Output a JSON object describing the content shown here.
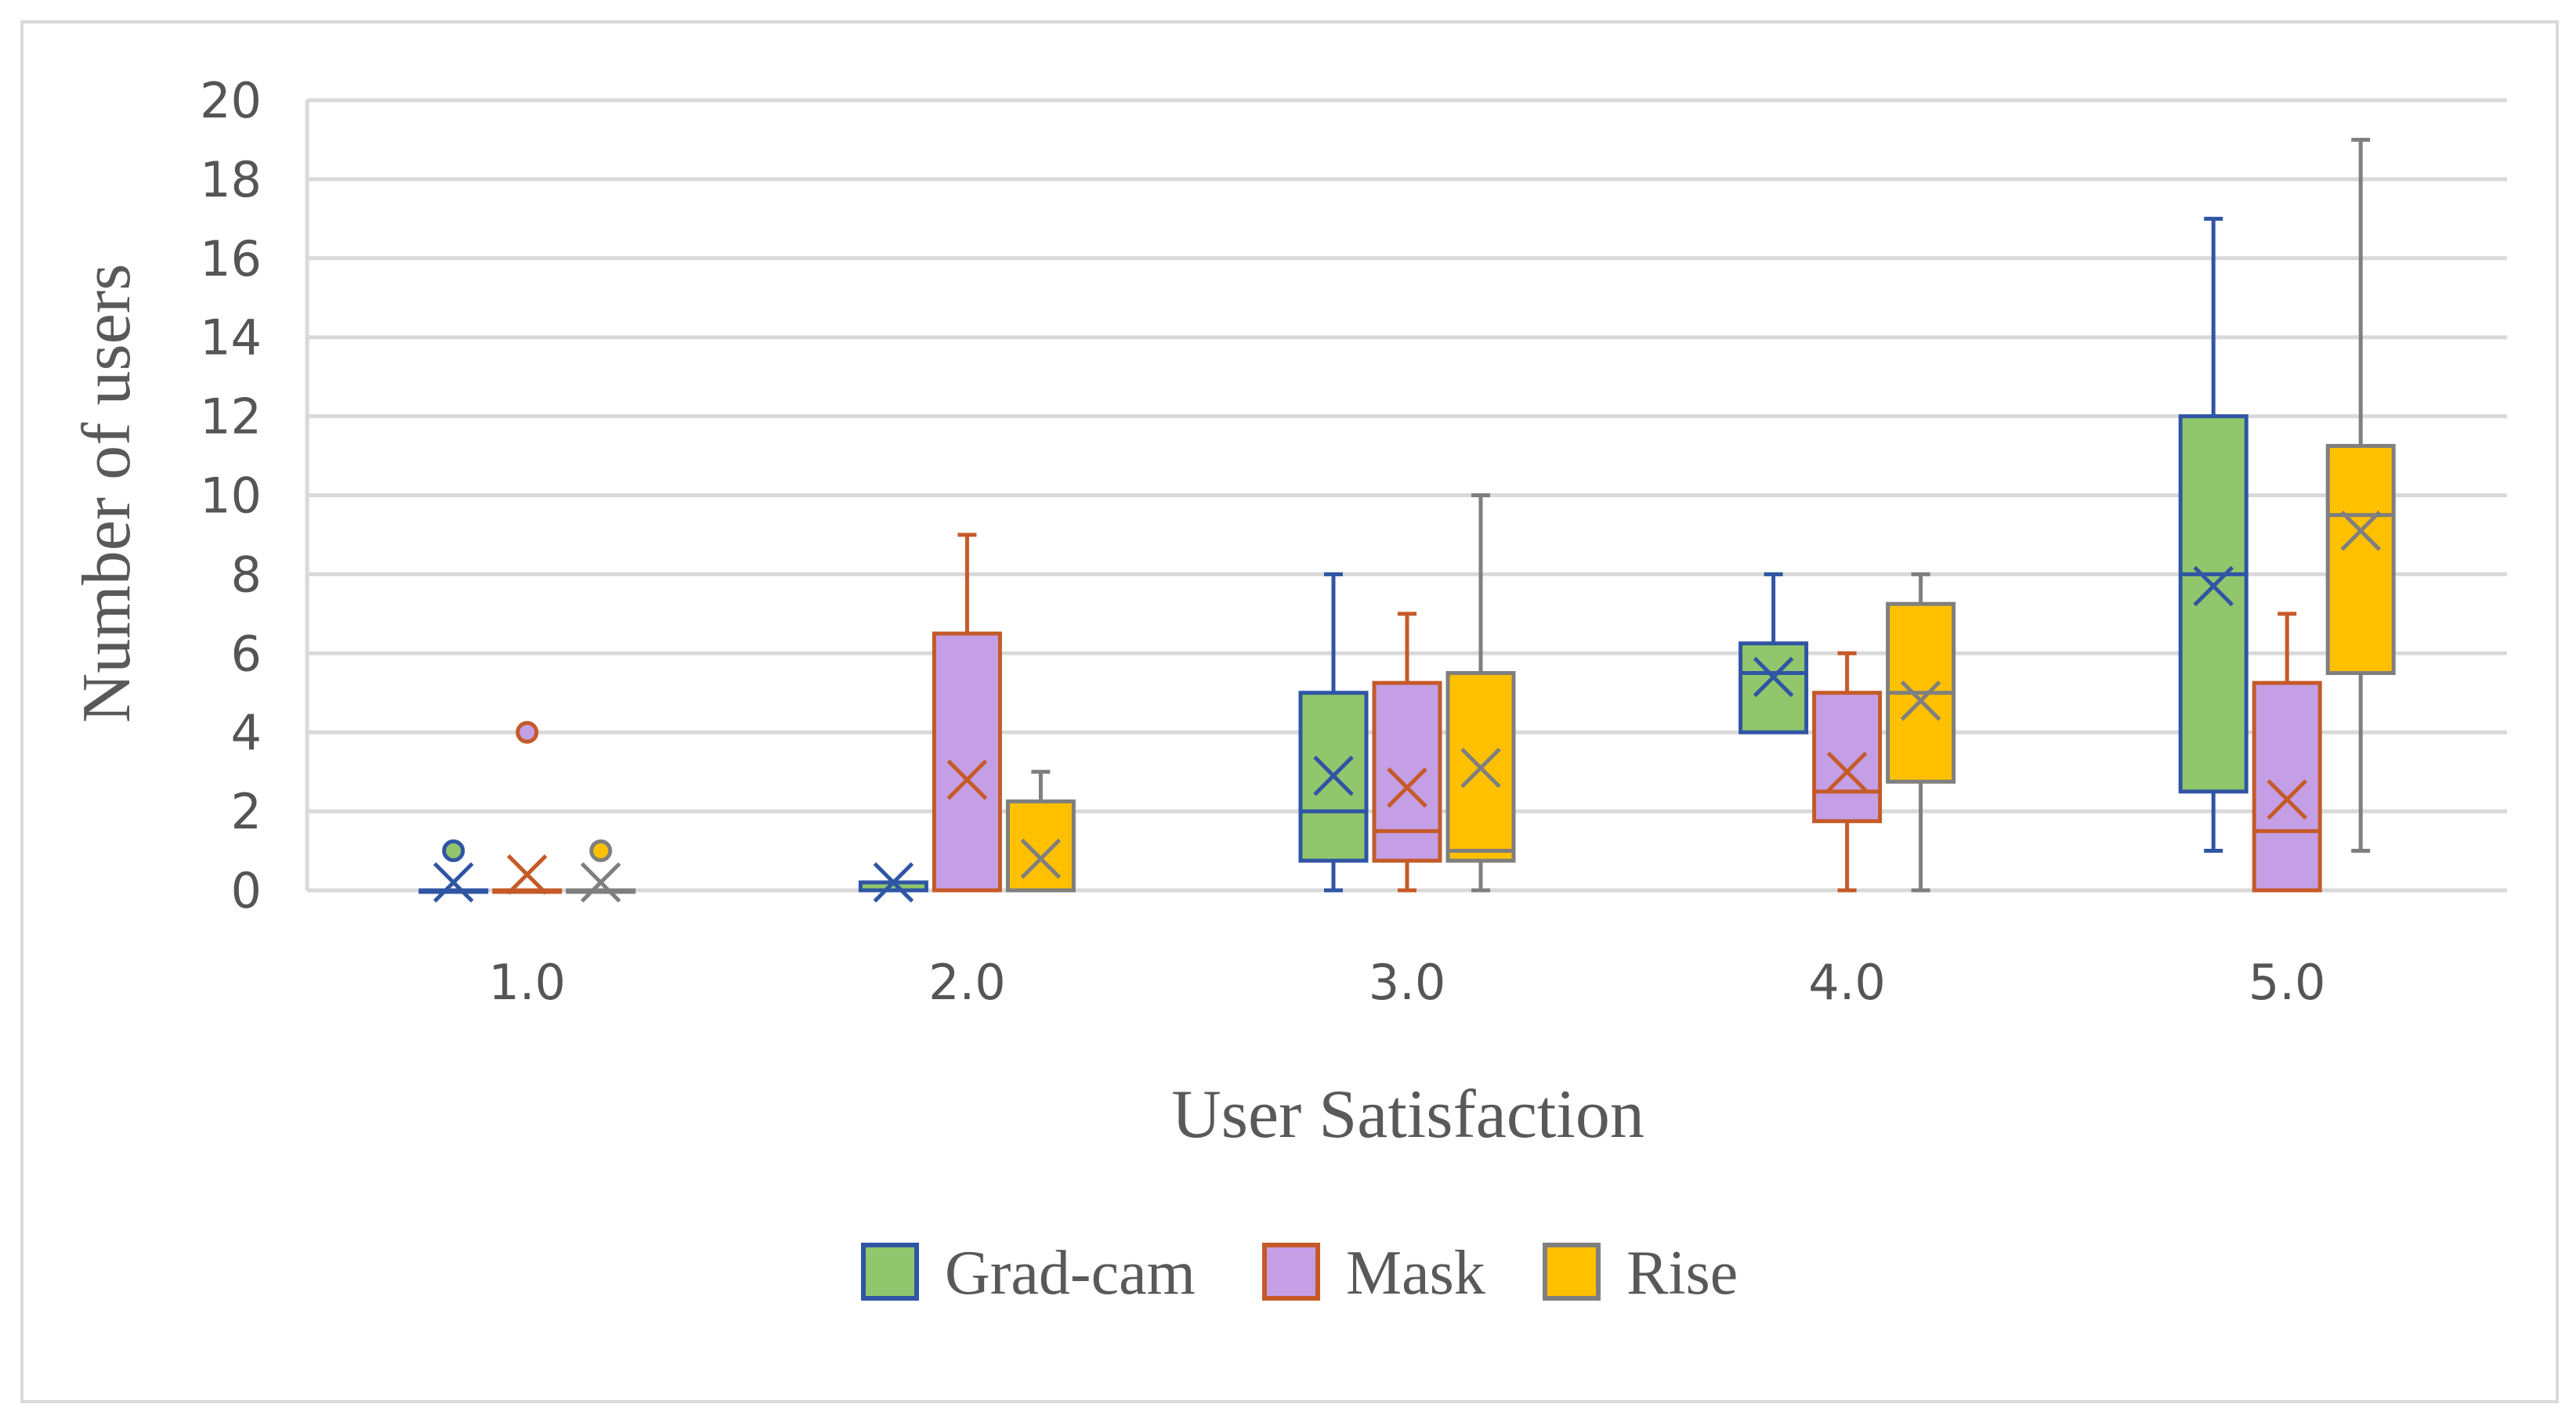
{
  "chart_data": {
    "type": "box",
    "xlabel": "User Satisfaction",
    "ylabel": "Number of users",
    "ylim": [
      0,
      20
    ],
    "yticks": [
      0,
      2,
      4,
      6,
      8,
      10,
      12,
      14,
      16,
      18,
      20
    ],
    "categories": [
      "1.0",
      "2.0",
      "3.0",
      "4.0",
      "5.0"
    ],
    "grid": true,
    "legend_position": "bottom",
    "series": [
      {
        "name": "Grad-cam",
        "fill": "#92C66C",
        "stroke": "#2F55A4",
        "boxes": [
          {
            "min": 0,
            "q1": 0,
            "median": 0,
            "q3": 0,
            "max": 0,
            "mean": 0.2,
            "outliers": [
              1
            ]
          },
          {
            "min": 0,
            "q1": 0,
            "median": 0,
            "q3": 0.2,
            "max": 0.2,
            "mean": 0.2,
            "outliers": []
          },
          {
            "min": 0,
            "q1": 0.75,
            "median": 2,
            "q3": 5,
            "max": 8,
            "mean": 2.9,
            "outliers": []
          },
          {
            "min": 4,
            "q1": 4,
            "median": 5.5,
            "q3": 6.25,
            "max": 8,
            "mean": 5.4,
            "outliers": []
          },
          {
            "min": 1,
            "q1": 2.5,
            "median": 8,
            "q3": 12,
            "max": 17,
            "mean": 7.7,
            "outliers": []
          }
        ]
      },
      {
        "name": "Mask",
        "fill": "#C49FE6",
        "stroke": "#C55A28",
        "boxes": [
          {
            "min": 0,
            "q1": 0,
            "median": 0,
            "q3": 0,
            "max": 0,
            "mean": 0.4,
            "outliers": [
              4
            ]
          },
          {
            "min": 0,
            "q1": 0,
            "median": 0,
            "q3": 6.5,
            "max": 9,
            "mean": 2.8,
            "outliers": []
          },
          {
            "min": 0,
            "q1": 0.75,
            "median": 1.5,
            "q3": 5.25,
            "max": 7,
            "mean": 2.6,
            "outliers": []
          },
          {
            "min": 0,
            "q1": 1.75,
            "median": 2.5,
            "q3": 5,
            "max": 6,
            "mean": 3,
            "outliers": []
          },
          {
            "min": 0,
            "q1": 0,
            "median": 1.5,
            "q3": 5.25,
            "max": 7,
            "mean": 2.3,
            "outliers": []
          }
        ]
      },
      {
        "name": "Rise",
        "fill": "#FFC000",
        "stroke": "#7F7F7F",
        "boxes": [
          {
            "min": 0,
            "q1": 0,
            "median": 0,
            "q3": 0,
            "max": 0,
            "mean": 0.2,
            "outliers": [
              1
            ]
          },
          {
            "min": 0,
            "q1": 0,
            "median": 0,
            "q3": 2.25,
            "max": 3,
            "mean": 0.8,
            "outliers": []
          },
          {
            "min": 0,
            "q1": 0.75,
            "median": 1,
            "q3": 5.5,
            "max": 10,
            "mean": 3.1,
            "outliers": []
          },
          {
            "min": 0,
            "q1": 2.75,
            "median": 5,
            "q3": 7.25,
            "max": 8,
            "mean": 4.8,
            "outliers": []
          },
          {
            "min": 1,
            "q1": 5.5,
            "median": 9.5,
            "q3": 11.25,
            "max": 19,
            "mean": 9.1,
            "outliers": []
          }
        ]
      }
    ]
  }
}
